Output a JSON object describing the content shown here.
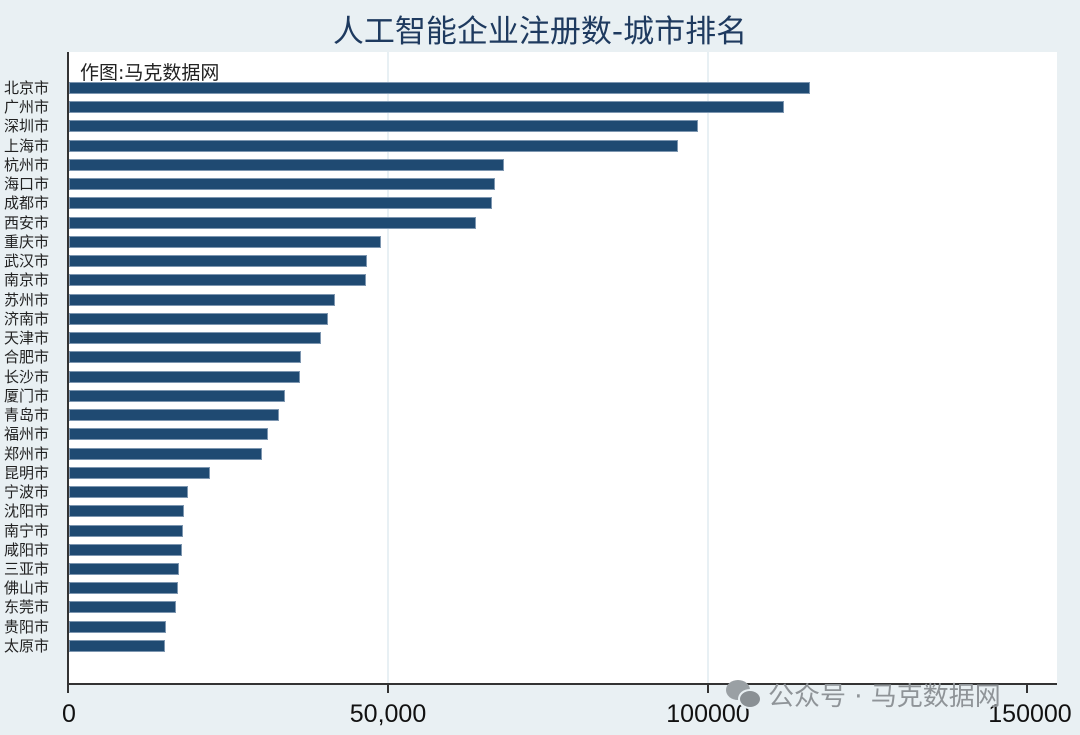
{
  "chart_data": {
    "type": "bar",
    "orientation": "horizontal",
    "title": "人工智能企业注册数-城市排名",
    "annotation": "作图:马克数据网",
    "watermark": "公众号 · 马克数据网",
    "xlabel": "",
    "ylabel": "",
    "xlim": [
      0,
      150000
    ],
    "x_ticks": [
      "0",
      "50,000",
      "100000",
      "150000"
    ],
    "x_tick_values": [
      0,
      50000,
      100000,
      150000
    ],
    "grid": true,
    "bar_color": "#1f4a72",
    "categories": [
      "北京市",
      "广州市",
      "深圳市",
      "上海市",
      "杭州市",
      "海口市",
      "成都市",
      "西安市",
      "重庆市",
      "武汉市",
      "南京市",
      "苏州市",
      "济南市",
      "天津市",
      "合肥市",
      "长沙市",
      "厦门市",
      "青岛市",
      "福州市",
      "郑州市",
      "昆明市",
      "宁波市",
      "沈阳市",
      "南宁市",
      "咸阳市",
      "三亚市",
      "佛山市",
      "东莞市",
      "贵阳市",
      "太原市"
    ],
    "values": [
      116000,
      112000,
      98500,
      95400,
      68100,
      66700,
      66200,
      63700,
      48900,
      46700,
      46500,
      41600,
      40600,
      39500,
      36300,
      36200,
      33800,
      32900,
      31200,
      30200,
      22100,
      18600,
      18000,
      17800,
      17700,
      17200,
      17100,
      16800,
      15200,
      15000
    ]
  }
}
